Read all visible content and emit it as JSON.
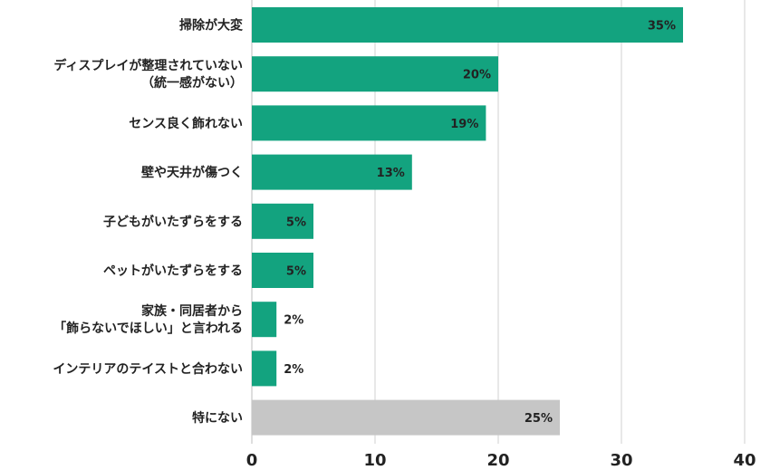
{
  "chart_data": {
    "type": "bar",
    "orientation": "horizontal",
    "categories": [
      [
        "掃除が大変"
      ],
      [
        "ディスプレイが整理されていない",
        "（統一感がない）"
      ],
      [
        "センス良く飾れない"
      ],
      [
        "壁や天井が傷つく"
      ],
      [
        "子どもがいたずらをする"
      ],
      [
        "ペットがいたずらをする"
      ],
      [
        "家族・同居者から",
        "「飾らないでほしい」と言われる"
      ],
      [
        "インテリアのテイストと合わない"
      ],
      [
        "特にない"
      ]
    ],
    "values": [
      35,
      20,
      19,
      13,
      5,
      5,
      2,
      2,
      25
    ],
    "value_labels": [
      "35%",
      "20%",
      "19%",
      "13%",
      "5%",
      "5%",
      "2%",
      "2%",
      "25%"
    ],
    "bar_colors": [
      "#13a37f",
      "#13a37f",
      "#13a37f",
      "#13a37f",
      "#13a37f",
      "#13a37f",
      "#13a37f",
      "#13a37f",
      "#c6c6c6"
    ],
    "xlim": [
      0,
      40
    ],
    "xticks": [
      0,
      10,
      20,
      30,
      40
    ],
    "grid": true
  }
}
